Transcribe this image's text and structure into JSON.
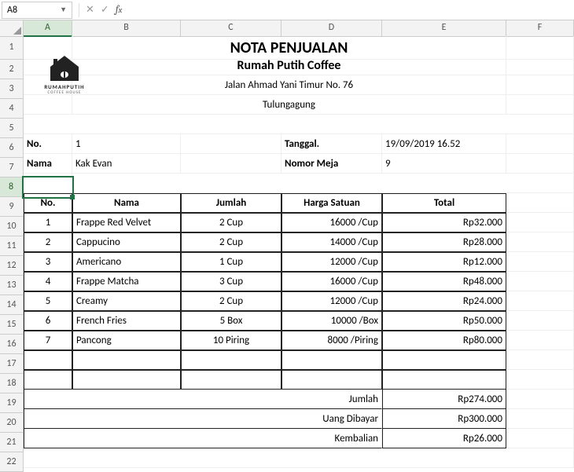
{
  "active_cell_ref": "A8",
  "columns": [
    "A",
    "B",
    "C",
    "D",
    "E",
    "F"
  ],
  "header": {
    "title": "NOTA PENJUALAN",
    "company": "Rumah Putih Coffee",
    "address": "Jalan Ahmad Yani Timur No. 76",
    "city": "Tulungagung",
    "logo_text": "RUMAHPUTIH",
    "logo_sub": "COFFEE HOUSE"
  },
  "info": {
    "no_label": "No.",
    "no_value": "1",
    "name_label": "Nama",
    "name_value": "Kak Evan",
    "date_label": "Tanggal.",
    "date_value": "19/09/2019 16.52",
    "table_label": "Nomor Meja",
    "table_value": "9"
  },
  "table": {
    "headers": {
      "no": "No.",
      "nama": "Nama",
      "jumlah": "Jumlah",
      "harga": "Harga Satuan",
      "total": "Total"
    },
    "rows": [
      {
        "no": "1",
        "nama": "Frappe Red Velvet",
        "jumlah": "2 Cup",
        "harga": "16000 /Cup",
        "total": "Rp32.000"
      },
      {
        "no": "2",
        "nama": "Cappucino",
        "jumlah": "2 Cup",
        "harga": "14000 /Cup",
        "total": "Rp28.000"
      },
      {
        "no": "3",
        "nama": "Americano",
        "jumlah": "1 Cup",
        "harga": "12000 /Cup",
        "total": "Rp12.000"
      },
      {
        "no": "4",
        "nama": "Frappe Matcha",
        "jumlah": "3 Cup",
        "harga": "16000 /Cup",
        "total": "Rp48.000"
      },
      {
        "no": "5",
        "nama": "Creamy",
        "jumlah": "2 Cup",
        "harga": "12000 /Cup",
        "total": "Rp24.000"
      },
      {
        "no": "6",
        "nama": "French Fries",
        "jumlah": "5 Box",
        "harga": "10000 /Box",
        "total": "Rp50.000"
      },
      {
        "no": "7",
        "nama": "Pancong",
        "jumlah": "10 Piring",
        "harga": "8000 /Piring",
        "total": "Rp80.000"
      }
    ]
  },
  "summary": {
    "jumlah_label": "Jumlah",
    "jumlah_value": "Rp274.000",
    "bayar_label": "Uang Dibayar",
    "bayar_value": "Rp300.000",
    "kembali_label": "Kembalian",
    "kembali_value": "Rp26.000"
  },
  "colors": {
    "excel_green": "#217346"
  }
}
